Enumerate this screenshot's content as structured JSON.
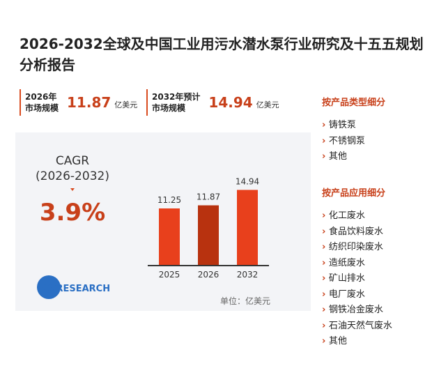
{
  "title": "2026-2032全球及中国工业用污水潜水泵行业研究及十五五规划分析报告",
  "stats": [
    {
      "label_lines": [
        "2026年",
        "市场规模"
      ],
      "value": 11.87,
      "unit": "亿美元"
    },
    {
      "label_lines": [
        "2032年预计",
        "市场规模"
      ],
      "value": 14.94,
      "unit": "亿美元"
    }
  ],
  "cagr": {
    "label": "CAGR",
    "period": "(2026-2032)",
    "value": "3.9%"
  },
  "logo": "QYRESEARCH",
  "chart_data": {
    "type": "bar",
    "categories": [
      "2025",
      "2026",
      "2032"
    ],
    "values": [
      11.25,
      11.87,
      14.94
    ],
    "colors": [
      "#e8401c",
      "#b8320f",
      "#e8401c"
    ],
    "ylim": [
      0,
      15
    ],
    "unit_label": "单位：亿美元"
  },
  "segments": [
    {
      "heading": "按产品类型细分",
      "items": [
        "铸铁泵",
        "不锈钢泵",
        "其他"
      ]
    },
    {
      "heading": "按产品应用细分",
      "items": [
        "化工废水",
        "食品饮料废水",
        "纺织印染废水",
        "造纸废水",
        "矿山排水",
        "电厂废水",
        "钢铁冶金废水",
        "石油天然气废水",
        "其他"
      ]
    }
  ]
}
